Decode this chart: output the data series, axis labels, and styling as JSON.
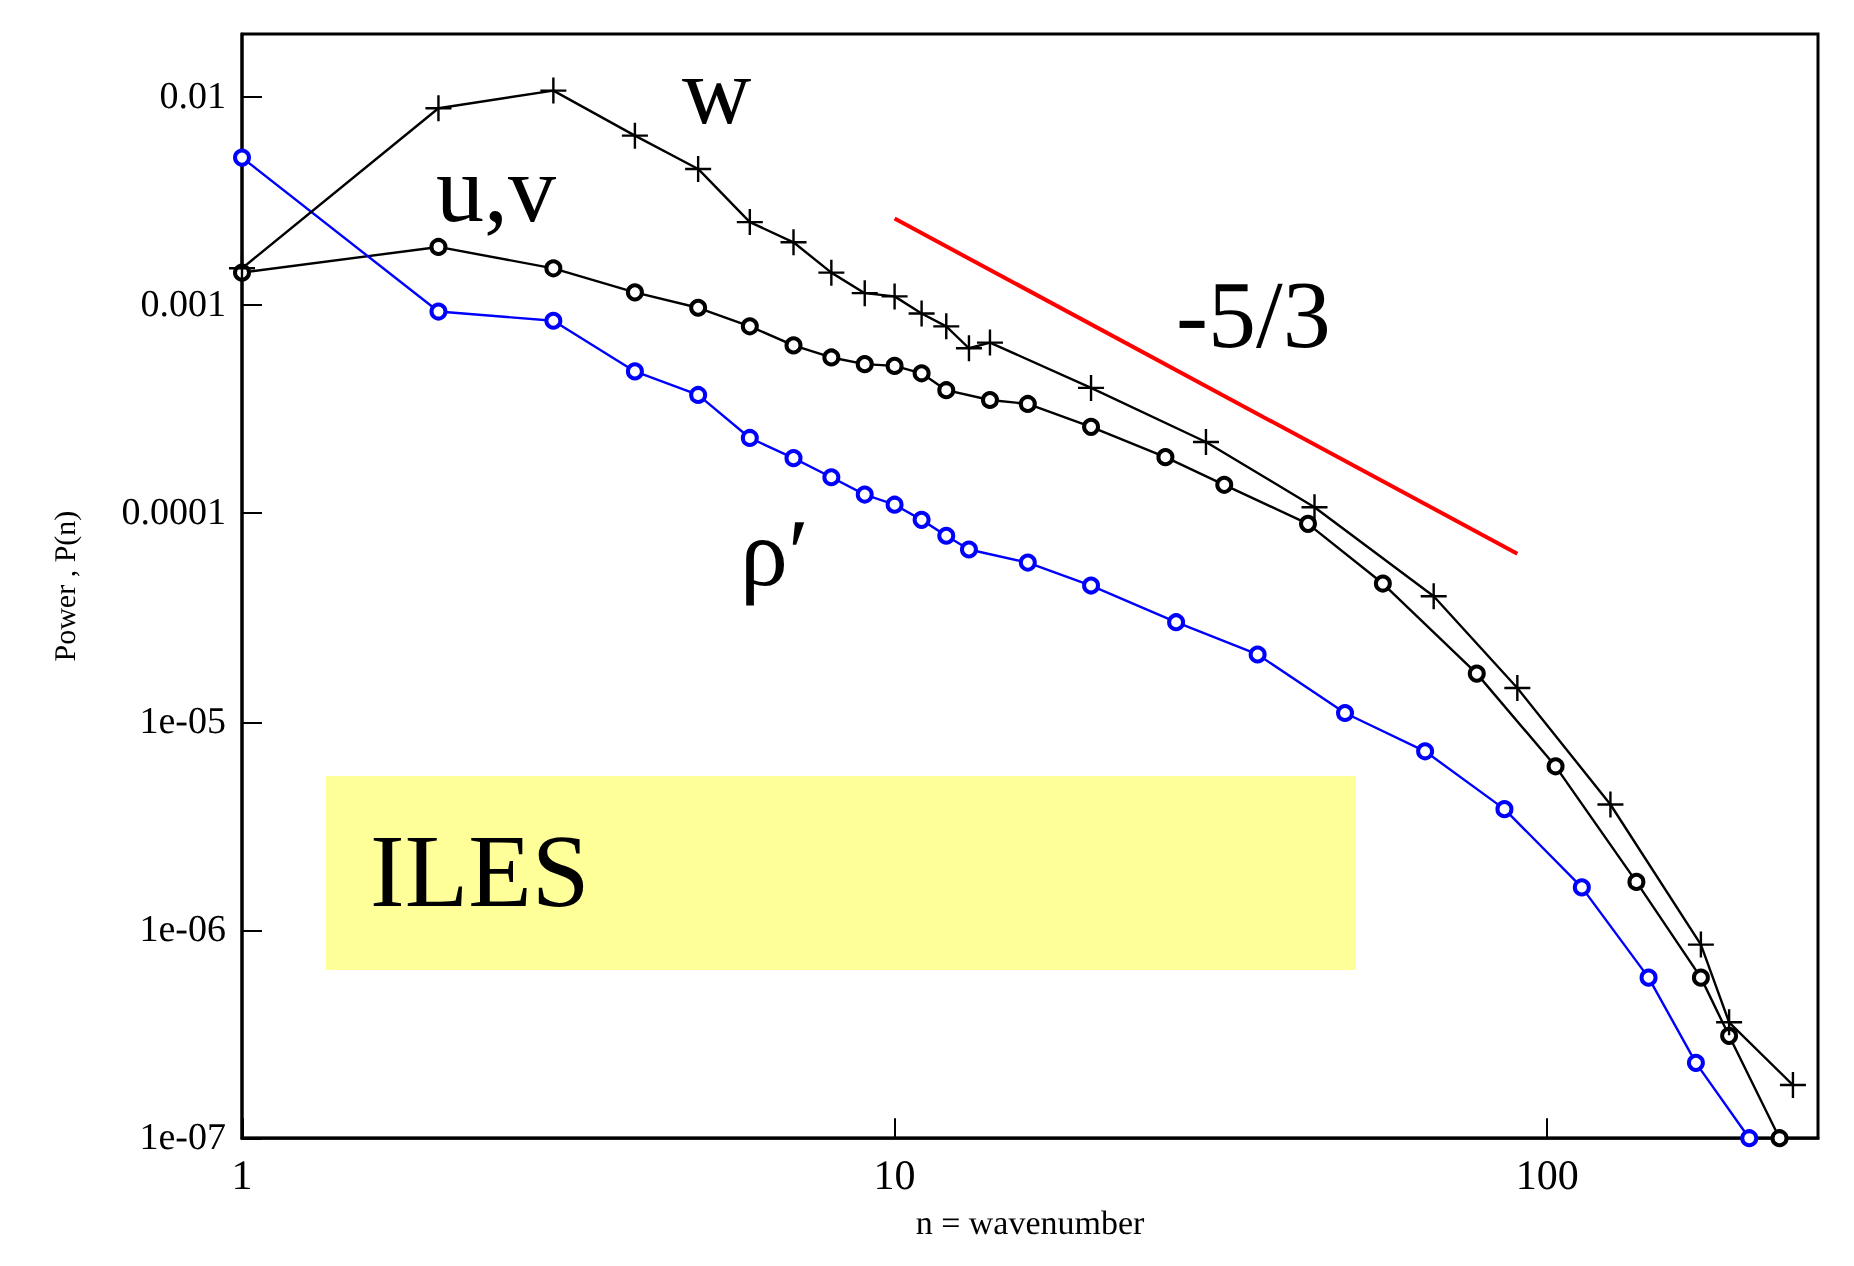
{
  "chart_data": {
    "type": "line",
    "xlabel": "n = wavenumber",
    "ylabel": "Power , P(n)",
    "log": "xy",
    "grid": false,
    "xlim": [
      1,
      260
    ],
    "xticks": [
      1,
      10,
      100
    ],
    "ylim": [
      1e-07,
      0.02
    ],
    "yticks": [
      {
        "value": 1e-07,
        "label": "1e-07"
      },
      {
        "value": 1e-06,
        "label": "1e-06"
      },
      {
        "value": 1e-05,
        "label": "1e-05"
      },
      0.0001,
      0.001,
      0.01
    ],
    "series": [
      {
        "color": "#000000",
        "marker": "cross",
        "x": [
          1,
          2,
          3,
          4,
          5,
          6,
          7,
          8,
          9,
          10,
          11,
          12,
          13,
          14,
          20,
          30,
          44,
          67,
          90,
          125,
          172,
          190,
          238
        ],
        "values": [
          0.0015,
          0.0088,
          0.0107,
          0.0065,
          0.0045,
          0.0025,
          0.002,
          0.00143,
          0.00114,
          0.0011,
          0.00091,
          0.00079,
          0.00062,
          0.00066,
          0.0004,
          0.00022,
          0.000107,
          4e-05,
          1.45e-05,
          4e-06,
          8.5e-07,
          3.6e-07,
          1.8e-07
        ]
      },
      {
        "color": "#000000",
        "marker": "circle",
        "x": [
          1,
          2,
          3,
          4,
          5,
          6,
          7,
          8,
          9,
          10,
          11,
          12,
          14,
          16,
          20,
          26,
          32,
          43,
          56,
          78,
          103,
          137,
          172,
          190,
          227
        ],
        "values": [
          0.00143,
          0.0019,
          0.0015,
          0.00115,
          0.00097,
          0.00079,
          0.00064,
          0.00056,
          0.00052,
          0.00051,
          0.00047,
          0.00039,
          0.00035,
          0.000335,
          0.00026,
          0.000186,
          0.000137,
          8.9e-05,
          4.6e-05,
          1.7e-05,
          6.1e-06,
          1.7e-06,
          5.9e-07,
          3.1e-07,
          1e-07
        ]
      },
      {
        "color": "#0000ff",
        "marker": "circle",
        "x": [
          1,
          2,
          3,
          4,
          5,
          6,
          7,
          8,
          9,
          10,
          11,
          12,
          13,
          16,
          20,
          27,
          36,
          49,
          65,
          86,
          113,
          143,
          169,
          204
        ],
        "values": [
          0.0051,
          0.00093,
          0.00084,
          0.00048,
          0.00037,
          0.00023,
          0.000184,
          0.000149,
          0.000123,
          0.00011,
          9.3e-05,
          7.8e-05,
          6.7e-05,
          5.8e-05,
          4.5e-05,
          3e-05,
          2.1e-05,
          1.1e-05,
          7.2e-06,
          3.8e-06,
          1.6e-06,
          5.9e-07,
          2.3e-07,
          1e-07
        ]
      },
      {
        "color": "#ff0000",
        "marker": "none",
        "x": [
          10,
          90
        ],
        "values": [
          0.0026,
          6.4e-05
        ]
      }
    ],
    "annotations": [
      "w",
      "u,v",
      "ρ′",
      "-5/3",
      "ILES"
    ]
  }
}
